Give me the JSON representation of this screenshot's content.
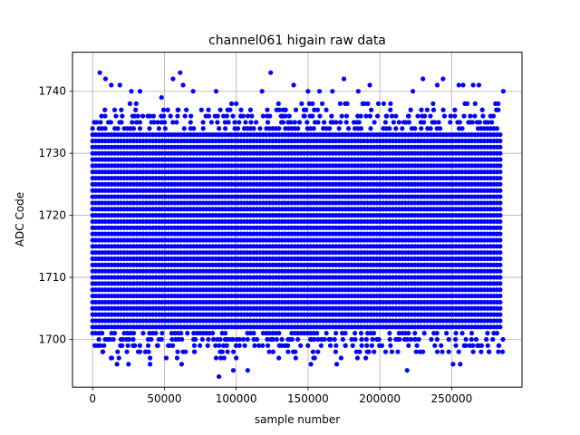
{
  "chart_data": {
    "type": "scatter",
    "title": "channel061 higain raw data",
    "xlabel": "sample number",
    "ylabel": "ADC Code",
    "xlim": [
      -14000,
      299000
    ],
    "ylim": [
      1692.3,
      1746.3
    ],
    "x_ticks": [
      0,
      50000,
      100000,
      150000,
      200000,
      250000
    ],
    "x_tick_labels": [
      "0",
      "50000",
      "100000",
      "150000",
      "200000",
      "250000"
    ],
    "y_ticks": [
      1700,
      1710,
      1720,
      1730,
      1740
    ],
    "y_tick_labels": [
      "1700",
      "1710",
      "1720",
      "1730",
      "1740"
    ],
    "grid": true,
    "marker_color": "#0000ff",
    "series": [
      {
        "x_range": [
          0,
          284000
        ],
        "dense_band": [
          1701,
          1734
        ],
        "outliers": [
          [
            5000,
            1743
          ],
          [
            9000,
            1742
          ],
          [
            13000,
            1741
          ],
          [
            19000,
            1741
          ],
          [
            27000,
            1740
          ],
          [
            33000,
            1740
          ],
          [
            48000,
            1739
          ],
          [
            56000,
            1742
          ],
          [
            61000,
            1743
          ],
          [
            63000,
            1741
          ],
          [
            70000,
            1740
          ],
          [
            86000,
            1740
          ],
          [
            100000,
            1738
          ],
          [
            118000,
            1740
          ],
          [
            124000,
            1743
          ],
          [
            140000,
            1741
          ],
          [
            150000,
            1740
          ],
          [
            158000,
            1740
          ],
          [
            167000,
            1740
          ],
          [
            175000,
            1742
          ],
          [
            185000,
            1740
          ],
          [
            193000,
            1741
          ],
          [
            223000,
            1740
          ],
          [
            230000,
            1742
          ],
          [
            240000,
            1741
          ],
          [
            244000,
            1742
          ],
          [
            255000,
            1741
          ],
          [
            258000,
            1741
          ],
          [
            265000,
            1741
          ],
          [
            269000,
            1741
          ],
          [
            286000,
            1740
          ],
          [
            7000,
            1698
          ],
          [
            17000,
            1696
          ],
          [
            25000,
            1696
          ],
          [
            33000,
            1698
          ],
          [
            40000,
            1696
          ],
          [
            40000,
            1697
          ],
          [
            45000,
            1699
          ],
          [
            62000,
            1696
          ],
          [
            71000,
            1698
          ],
          [
            88000,
            1694
          ],
          [
            98000,
            1695
          ],
          [
            100000,
            1697
          ],
          [
            108000,
            1695
          ],
          [
            123000,
            1698
          ],
          [
            130000,
            1699
          ],
          [
            152000,
            1696
          ],
          [
            170000,
            1696
          ],
          [
            176000,
            1699
          ],
          [
            186000,
            1698
          ],
          [
            196000,
            1698
          ],
          [
            204000,
            1698
          ],
          [
            219000,
            1695
          ],
          [
            228000,
            1698
          ],
          [
            240000,
            1698
          ],
          [
            248000,
            1698
          ],
          [
            251000,
            1696
          ],
          [
            256000,
            1696
          ],
          [
            265000,
            1698
          ],
          [
            276000,
            1698
          ],
          [
            283000,
            1699
          ]
        ]
      }
    ]
  }
}
